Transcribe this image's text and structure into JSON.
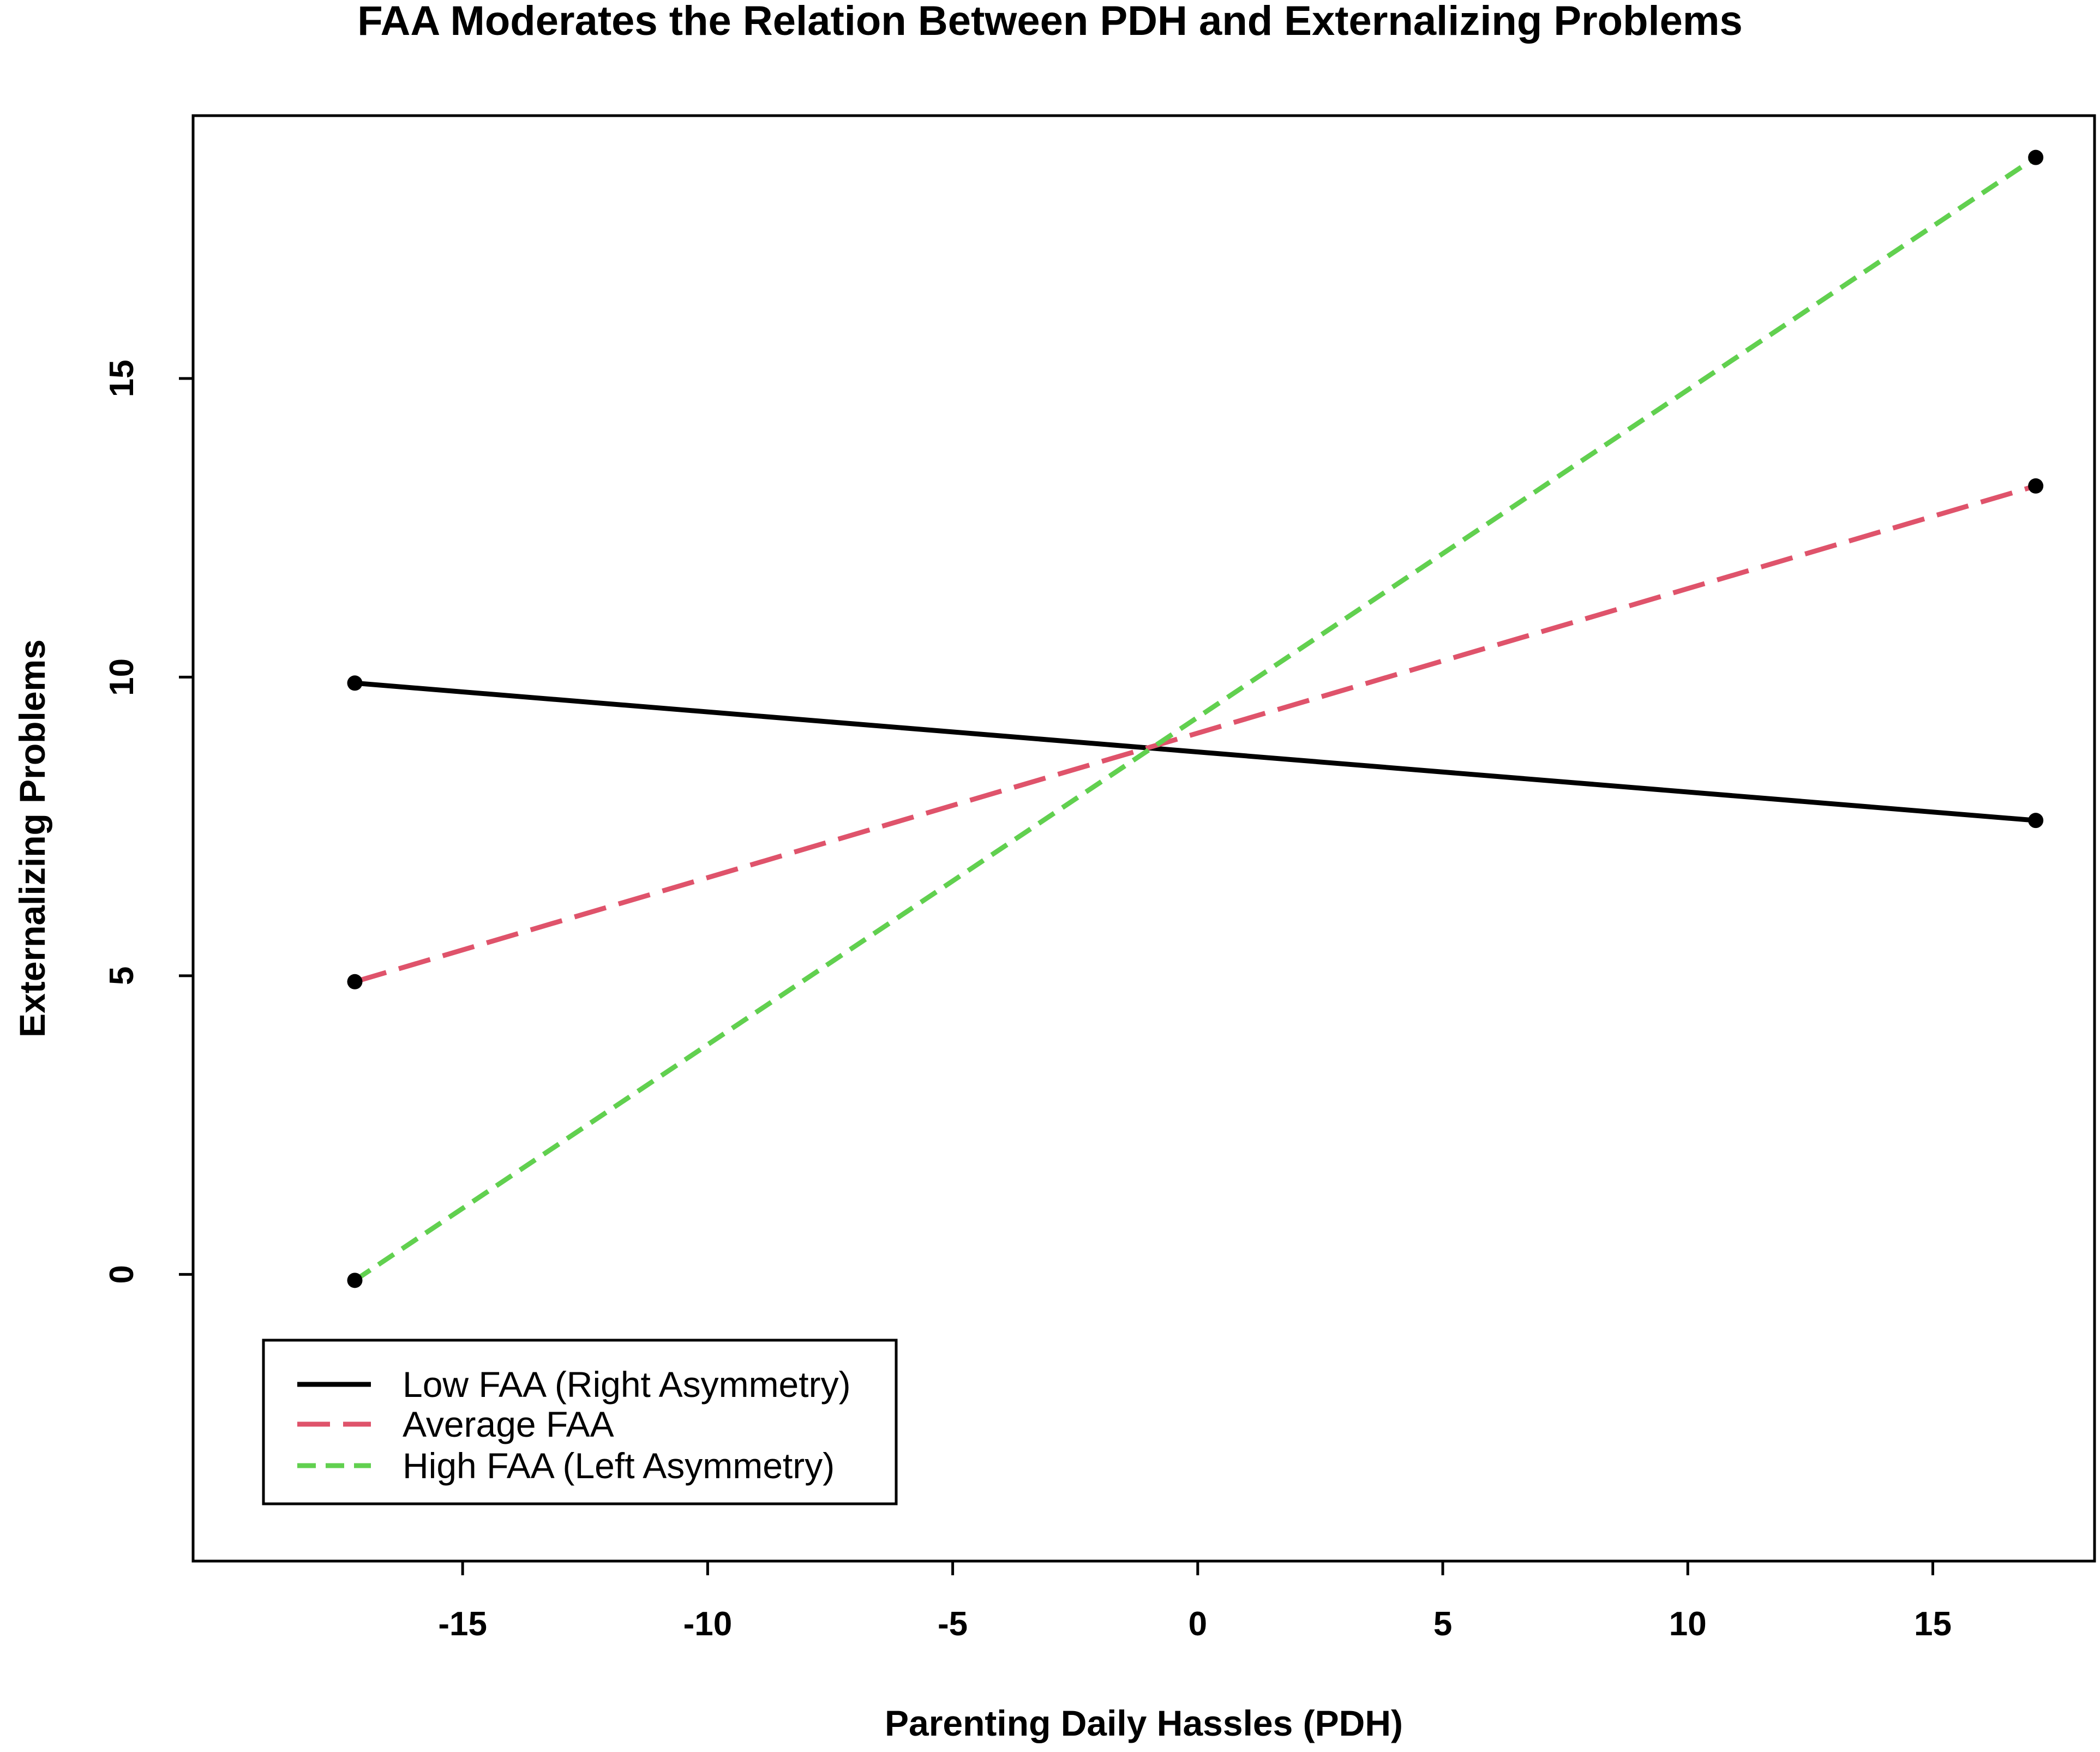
{
  "chart_data": {
    "type": "line",
    "title": "FAA Moderates the Relation Between PDH and Externalizing Problems",
    "xlabel": "Parenting Daily Hassles (PDH)",
    "ylabel": "Externalizing Problems",
    "xlim": [
      -20.5,
      18.3
    ],
    "ylim": [
      -4.8,
      19.4
    ],
    "xticks": [
      -15,
      -10,
      -5,
      0,
      5,
      10,
      15
    ],
    "xtick_labels": [
      "-15",
      "-10",
      "-5",
      "0",
      "5",
      "10",
      "15"
    ],
    "yticks": [
      0,
      5,
      10,
      15
    ],
    "ytick_labels": [
      "0",
      "5",
      "10",
      "15"
    ],
    "grid": false,
    "legend_position": "bottom-left",
    "series": [
      {
        "name": "Low FAA (Right Asymmetry)",
        "color": "#000000",
        "dash": "solid",
        "x": [
          -17.2,
          17.1
        ],
        "y": [
          9.9,
          7.6
        ]
      },
      {
        "name": "Average FAA",
        "color": "#DF536B",
        "dash": "dashed",
        "x": [
          -17.2,
          17.1
        ],
        "y": [
          4.9,
          13.2
        ]
      },
      {
        "name": "High FAA (Left Asymmetry)",
        "color": "#61D04F",
        "dash": "shortdash",
        "x": [
          -17.2,
          17.1
        ],
        "y": [
          -0.1,
          18.7
        ]
      }
    ]
  }
}
